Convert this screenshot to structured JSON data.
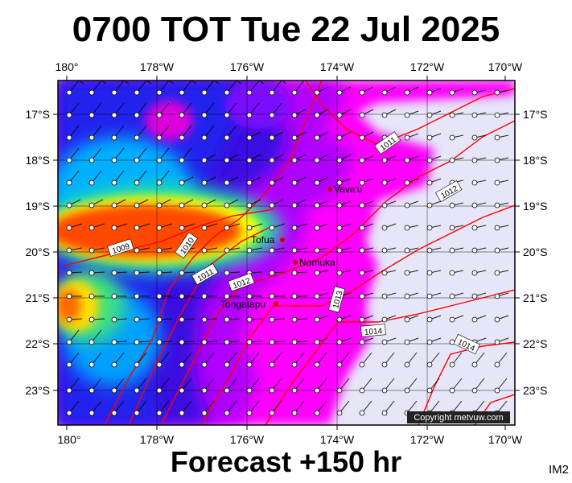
{
  "header": {
    "title": "0700 TOT Tue 22 Jul 2025"
  },
  "footer": {
    "forecast": "Forecast +150 hr",
    "tag": "IM2"
  },
  "map": {
    "lon_labels": [
      "180°",
      "178°W",
      "176°W",
      "174°W",
      "172°W",
      "170°W"
    ],
    "lat_labels": [
      "17°S",
      "18°S",
      "19°S",
      "20°S",
      "21°S",
      "22°S",
      "23°S"
    ],
    "places": [
      {
        "name": "Vava'u",
        "lon": -173.98,
        "lat": -18.65
      },
      {
        "name": "Tofua",
        "lon": -175.06,
        "lat": -19.75
      },
      {
        "name": "Nomuka",
        "lon": -174.8,
        "lat": -20.25
      },
      {
        "name": "Tongatapu",
        "lon": -175.2,
        "lat": -21.15
      }
    ],
    "isobar_labels": [
      "1009",
      "1010",
      "1011",
      "1012",
      "1013",
      "1014",
      "1011",
      "1012",
      "1014"
    ],
    "copyright": "Copyright metvuw.com",
    "colors": {
      "isobar": "#ff0000",
      "place": "#cc0000",
      "calm": "#e6e6f8",
      "strong": "#ff4a00"
    }
  }
}
